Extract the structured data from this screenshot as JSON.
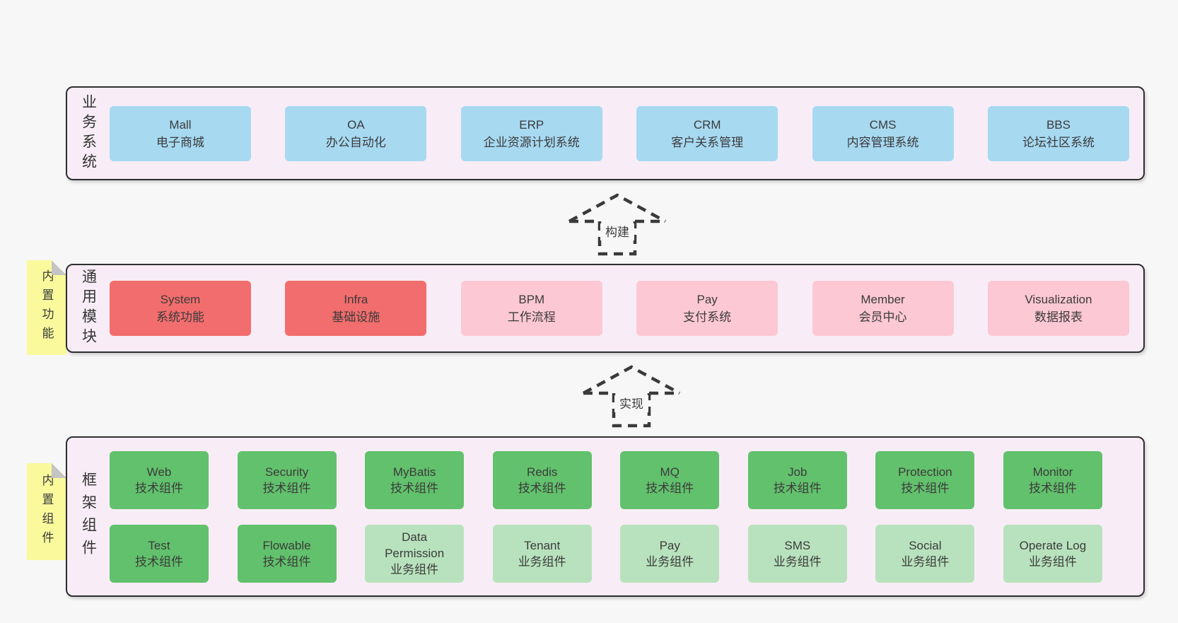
{
  "colors": {
    "page_bg": "#f7f7f7",
    "panel_bg": "#f8edf6",
    "panel_border": "#2e2e2e",
    "blue": "#a7d9f1",
    "red": "#f26d6d",
    "pink": "#fcc8d4",
    "green": "#62c16c",
    "green_light": "#b8e2bd",
    "sticky_yellow": "#fafa9d",
    "fold_gray": "#c4c4c4",
    "text": "#3b3b3b",
    "arrow": "#3a3a3a"
  },
  "sections": [
    {
      "id": "business-systems",
      "side_label": "业务系统",
      "sticky": null,
      "boxes_rows": [
        [
          {
            "title": "Mall",
            "subtitle": "电子商城",
            "color": "blue"
          },
          {
            "title": "OA",
            "subtitle": "办公自动化",
            "color": "blue"
          },
          {
            "title": "ERP",
            "subtitle": "企业资源计划系统",
            "color": "blue"
          },
          {
            "title": "CRM",
            "subtitle": "客户关系管理",
            "color": "blue"
          },
          {
            "title": "CMS",
            "subtitle": "内容管理系统",
            "color": "blue"
          },
          {
            "title": "BBS",
            "subtitle": "论坛社区系统",
            "color": "blue"
          }
        ]
      ]
    },
    {
      "id": "common-modules",
      "side_label": "通用模块",
      "sticky": "内置功能",
      "boxes_rows": [
        [
          {
            "title": "System",
            "subtitle": "系统功能",
            "color": "red"
          },
          {
            "title": "Infra",
            "subtitle": "基础设施",
            "color": "red"
          },
          {
            "title": "BPM",
            "subtitle": "工作流程",
            "color": "pink"
          },
          {
            "title": "Pay",
            "subtitle": "支付系统",
            "color": "pink"
          },
          {
            "title": "Member",
            "subtitle": "会员中心",
            "color": "pink"
          },
          {
            "title": "Visualization",
            "subtitle": "数据报表",
            "color": "pink"
          }
        ]
      ]
    },
    {
      "id": "framework-components",
      "side_label": "框架组件",
      "sticky": "内置组件",
      "boxes_rows": [
        [
          {
            "title": "Web",
            "subtitle": "技术组件",
            "color": "green"
          },
          {
            "title": "Security",
            "subtitle": "技术组件",
            "color": "green"
          },
          {
            "title": "MyBatis",
            "subtitle": "技术组件",
            "color": "green"
          },
          {
            "title": "Redis",
            "subtitle": "技术组件",
            "color": "green"
          },
          {
            "title": "MQ",
            "subtitle": "技术组件",
            "color": "green"
          },
          {
            "title": "Job",
            "subtitle": "技术组件",
            "color": "green"
          },
          {
            "title": "Protection",
            "subtitle": "技术组件",
            "color": "green"
          },
          {
            "title": "Monitor",
            "subtitle": "技术组件",
            "color": "green"
          }
        ],
        [
          {
            "title": "Test",
            "subtitle": "技术组件",
            "color": "green"
          },
          {
            "title": "Flowable",
            "subtitle": "技术组件",
            "color": "green"
          },
          {
            "title": "Data Permission",
            "subtitle": "业务组件",
            "color": "green-light"
          },
          {
            "title": "Tenant",
            "subtitle": "业务组件",
            "color": "green-light"
          },
          {
            "title": "Pay",
            "subtitle": "业务组件",
            "color": "green-light"
          },
          {
            "title": "SMS",
            "subtitle": "业务组件",
            "color": "green-light"
          },
          {
            "title": "Social",
            "subtitle": "业务组件",
            "color": "green-light"
          },
          {
            "title": "Operate Log",
            "subtitle": "业务组件",
            "color": "green-light"
          }
        ]
      ]
    }
  ],
  "arrows": [
    {
      "label": "构建"
    },
    {
      "label": "实现"
    }
  ]
}
